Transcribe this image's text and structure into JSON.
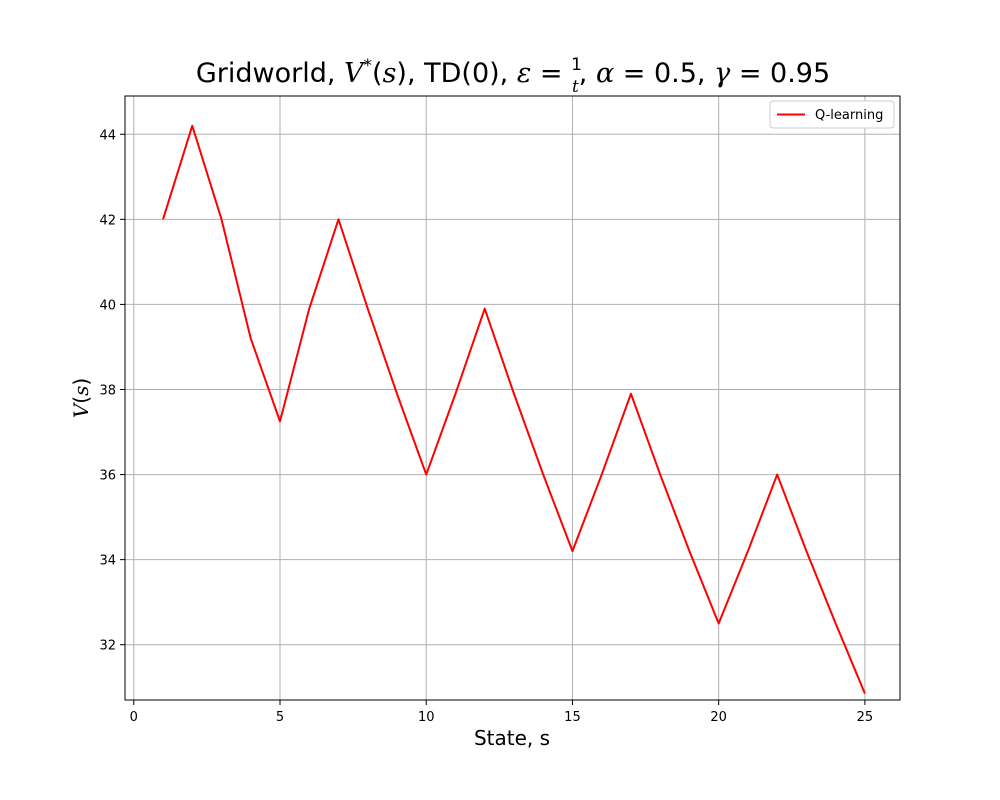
{
  "chart_data": {
    "type": "line",
    "title": {
      "prefix": "Gridworld, ",
      "v": "V",
      "star": "*",
      "s_open": "(",
      "s": "s",
      "s_close": "),",
      "td": " TD(0), ",
      "eps": "ε",
      "eq1": " = ",
      "frac_num": "1",
      "frac_den": "t",
      "comma1": ", ",
      "alpha": "α",
      "alpha_val": " = 0.5, ",
      "gamma": "γ",
      "gamma_val": " = 0.95"
    },
    "xlabel": "State, s",
    "ylabel": {
      "v": "V",
      "open": "(",
      "s": "s",
      "close": ")"
    },
    "xlim": [
      -0.3,
      26.2
    ],
    "ylim": [
      30.7,
      44.9
    ],
    "xticks": [
      0,
      5,
      10,
      15,
      20,
      25
    ],
    "yticks": [
      32,
      34,
      36,
      38,
      40,
      42,
      44
    ],
    "grid": true,
    "legend_position": "top-right",
    "series": [
      {
        "name": "Q-learning",
        "color": "#ff0000",
        "x": [
          1,
          2,
          3,
          4,
          5,
          6,
          7,
          8,
          9,
          10,
          11,
          12,
          13,
          14,
          15,
          16,
          17,
          18,
          19,
          20,
          21,
          22,
          23,
          24,
          25
        ],
        "values": [
          42.0,
          44.2,
          42.0,
          39.2,
          37.25,
          39.9,
          42.0,
          39.9,
          37.9,
          36.0,
          37.9,
          39.9,
          37.9,
          36.0,
          34.2,
          36.0,
          37.9,
          36.0,
          34.2,
          32.5,
          34.2,
          36.0,
          34.2,
          32.5,
          30.85
        ]
      }
    ]
  }
}
